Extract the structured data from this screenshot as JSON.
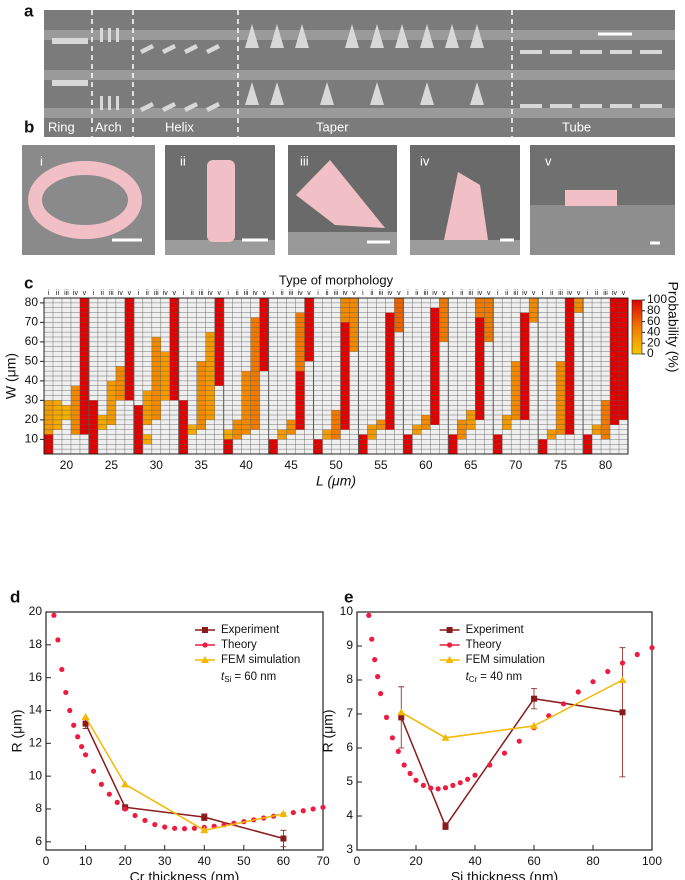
{
  "panel_labels": [
    "a",
    "b",
    "c",
    "d",
    "e"
  ],
  "panel_a": {
    "labels": [
      "Ring",
      "Arch",
      "Helix",
      "Taper",
      "Tube"
    ]
  },
  "panel_b": {
    "labels": [
      "i",
      "ii",
      "iii",
      "iv",
      "v"
    ]
  },
  "chart_data": [
    {
      "type": "heatmap",
      "title": "Type of morphology",
      "morphologies": [
        "i",
        "ii",
        "iii",
        "iv",
        "v"
      ],
      "x_label": "L (μm)",
      "y_label": "W (μm)",
      "categories": [
        20,
        25,
        30,
        35,
        40,
        45,
        50,
        55,
        60,
        65,
        70,
        75,
        80
      ],
      "ylim": [
        2.5,
        82.5
      ],
      "yticks": [
        10,
        20,
        30,
        40,
        50,
        60,
        70,
        80
      ],
      "colorbar_label": "Probability (%)",
      "clim": [
        0,
        100
      ],
      "cticks": [
        0,
        20,
        40,
        60,
        80,
        100
      ],
      "colors": [
        "#f7c900",
        "#f07a00",
        "#e00000"
      ],
      "cells": [
        [
          [
            [
              2.5,
              12.5,
              100
            ],
            [
              12.5,
              30,
              30
            ]
          ],
          [
            [
              15,
              30,
              20
            ]
          ],
          [
            [
              20,
              27.5,
              15
            ]
          ],
          [
            [
              12.5,
              37.5,
              40
            ]
          ],
          [
            [
              12.5,
              82.5,
              100
            ]
          ]
        ],
        [
          [
            [
              2.5,
              30,
              100
            ]
          ],
          [
            [
              15,
              22.5,
              20
            ]
          ],
          [
            [
              17.5,
              40,
              30
            ]
          ],
          [
            [
              30,
              47.5,
              40
            ]
          ],
          [
            [
              30,
              82.5,
              100
            ]
          ]
        ],
        [
          [
            [
              2.5,
              27.5,
              100
            ]
          ],
          [
            [
              7.5,
              12.5,
              20
            ],
            [
              17.5,
              35,
              30
            ]
          ],
          [
            [
              20,
              62.5,
              40
            ]
          ],
          [
            [
              30,
              55,
              30
            ]
          ],
          [
            [
              30,
              82.5,
              100
            ]
          ]
        ],
        [
          [
            [
              2.5,
              30,
              100
            ]
          ],
          [
            [
              12.5,
              17.5,
              20
            ]
          ],
          [
            [
              15,
              50,
              40
            ]
          ],
          [
            [
              20,
              65,
              30
            ]
          ],
          [
            [
              37.5,
              82.5,
              100
            ]
          ]
        ],
        [
          [
            [
              2.5,
              10,
              100
            ],
            [
              10,
              15,
              20
            ]
          ],
          [
            [
              10,
              20,
              40
            ]
          ],
          [
            [
              12.5,
              45,
              40
            ]
          ],
          [
            [
              15,
              72.5,
              50
            ]
          ],
          [
            [
              45,
              82.5,
              100
            ]
          ]
        ],
        [
          [
            [
              2.5,
              10,
              100
            ]
          ],
          [
            [
              10,
              15,
              30
            ]
          ],
          [
            [
              12.5,
              20,
              40
            ]
          ],
          [
            [
              15,
              45,
              100
            ],
            [
              45,
              75,
              50
            ]
          ],
          [
            [
              50,
              82.5,
              100
            ]
          ]
        ],
        [
          [
            [
              2.5,
              10,
              100
            ]
          ],
          [
            [
              10,
              15,
              30
            ]
          ],
          [
            [
              10,
              25,
              50
            ]
          ],
          [
            [
              15,
              70,
              100
            ],
            [
              70,
              82.5,
              40
            ]
          ],
          [
            [
              55,
              82.5,
              40
            ]
          ]
        ],
        [
          [
            [
              2.5,
              12.5,
              100
            ]
          ],
          [
            [
              10,
              17.5,
              30
            ]
          ],
          [
            [
              15,
              20,
              40
            ]
          ],
          [
            [
              15,
              75,
              100
            ]
          ],
          [
            [
              65,
              82.5,
              60
            ]
          ]
        ],
        [
          [
            [
              2.5,
              12.5,
              100
            ]
          ],
          [
            [
              12.5,
              17.5,
              30
            ]
          ],
          [
            [
              15,
              22.5,
              40
            ]
          ],
          [
            [
              17.5,
              77.5,
              100
            ]
          ],
          [
            [
              60,
              82.5,
              50
            ]
          ]
        ],
        [
          [
            [
              2.5,
              12.5,
              100
            ]
          ],
          [
            [
              10,
              20,
              40
            ]
          ],
          [
            [
              15,
              25,
              30
            ]
          ],
          [
            [
              20,
              72.5,
              100
            ],
            [
              72.5,
              82.5,
              50
            ]
          ],
          [
            [
              60,
              82.5,
              50
            ]
          ]
        ],
        [
          [
            [
              2.5,
              12.5,
              100
            ]
          ],
          [
            [
              15,
              22.5,
              30
            ]
          ],
          [
            [
              20,
              50,
              40
            ]
          ],
          [
            [
              20,
              75,
              100
            ]
          ],
          [
            [
              70,
              82.5,
              40
            ]
          ]
        ],
        [
          [
            [
              2.5,
              10,
              100
            ]
          ],
          [
            [
              10,
              15,
              30
            ]
          ],
          [
            [
              12.5,
              50,
              40
            ]
          ],
          [
            [
              12.5,
              82.5,
              100
            ]
          ],
          [
            [
              75,
              82.5,
              40
            ]
          ]
        ],
        [
          [
            [
              2.5,
              12.5,
              100
            ]
          ],
          [
            [
              12.5,
              17.5,
              30
            ]
          ],
          [
            [
              10,
              30,
              50
            ]
          ],
          [
            [
              17.5,
              82.5,
              100
            ]
          ],
          [
            [
              20,
              82.5,
              100
            ]
          ]
        ]
      ]
    },
    {
      "type": "line",
      "x_label": "Cr thickness (nm)",
      "y_label": "R (μm)",
      "xlim": [
        0,
        70
      ],
      "xticks": [
        0,
        10,
        20,
        30,
        40,
        50,
        60,
        70
      ],
      "ylim": [
        5.5,
        20
      ],
      "yticks": [
        6,
        8,
        10,
        12,
        14,
        16,
        18,
        20
      ],
      "legend": "upper right",
      "annotation": {
        "symbol": "t",
        "subscript": "Si",
        "text": "= 60 nm"
      },
      "series": [
        {
          "name": "Experiment",
          "color": "#8b1a1a",
          "marker": "square",
          "connect": true,
          "x": [
            10,
            20,
            40,
            60
          ],
          "values": [
            13.2,
            8.1,
            7.5,
            6.2
          ],
          "errors": [
            0.3,
            0.15,
            0.2,
            0.5
          ]
        },
        {
          "name": "Theory",
          "color": "#ee1c40",
          "marker": "circle",
          "connect": false,
          "x": [
            2,
            3,
            4,
            5,
            6,
            7,
            8,
            9,
            10,
            12,
            14,
            16,
            18,
            20,
            22.5,
            25,
            27.5,
            30,
            32.5,
            35,
            37.5,
            40,
            42.5,
            45,
            47.5,
            50,
            52.5,
            55,
            57.5,
            60,
            62.5,
            65,
            67.5,
            70
          ],
          "values": [
            19.8,
            18.3,
            16.5,
            15.1,
            14.0,
            13.1,
            12.4,
            11.8,
            11.3,
            10.3,
            9.5,
            8.9,
            8.4,
            8.0,
            7.6,
            7.3,
            7.05,
            6.9,
            6.82,
            6.8,
            6.82,
            6.88,
            6.95,
            7.04,
            7.13,
            7.23,
            7.34,
            7.45,
            7.56,
            7.67,
            7.78,
            7.89,
            8.0,
            8.1
          ]
        },
        {
          "name": "FEM simulation",
          "color": "#f5b800",
          "marker": "triangle",
          "connect": true,
          "x": [
            10,
            20,
            40,
            60
          ],
          "values": [
            13.6,
            9.5,
            6.7,
            7.7
          ]
        }
      ]
    },
    {
      "type": "line",
      "x_label": "Si thickness (nm)",
      "y_label": "R (μm)",
      "xlim": [
        0,
        100
      ],
      "xticks": [
        0,
        20,
        40,
        60,
        80,
        100
      ],
      "ylim": [
        3,
        10
      ],
      "yticks": [
        3,
        4,
        5,
        6,
        7,
        8,
        9,
        10
      ],
      "legend": "upper center",
      "annotation": {
        "symbol": "t",
        "subscript": "Cr",
        "text": "= 40 nm"
      },
      "series": [
        {
          "name": "Experiment",
          "color": "#8b1a1a",
          "marker": "square",
          "connect": true,
          "x": [
            15,
            30,
            60,
            90
          ],
          "values": [
            6.9,
            3.7,
            7.45,
            7.05
          ],
          "errors": [
            0.9,
            0.1,
            0.3,
            1.9
          ]
        },
        {
          "name": "Theory",
          "color": "#ee1c40",
          "marker": "circle",
          "connect": false,
          "x": [
            4,
            5,
            6,
            7,
            8,
            10,
            12,
            14,
            16,
            18,
            20,
            22.5,
            25,
            27.5,
            30,
            32.5,
            35,
            37.5,
            40,
            45,
            50,
            55,
            60,
            65,
            70,
            75,
            80,
            85,
            90,
            95,
            100
          ],
          "values": [
            9.9,
            9.2,
            8.6,
            8.1,
            7.6,
            6.9,
            6.3,
            5.9,
            5.5,
            5.25,
            5.05,
            4.9,
            4.82,
            4.8,
            4.83,
            4.9,
            4.98,
            5.08,
            5.2,
            5.5,
            5.85,
            6.2,
            6.6,
            6.95,
            7.3,
            7.65,
            7.95,
            8.25,
            8.5,
            8.75,
            8.95
          ]
        },
        {
          "name": "FEM simulation",
          "color": "#f5b800",
          "marker": "triangle",
          "connect": true,
          "x": [
            15,
            30,
            60,
            90
          ],
          "values": [
            7.05,
            6.3,
            6.65,
            8.0
          ]
        }
      ]
    }
  ]
}
